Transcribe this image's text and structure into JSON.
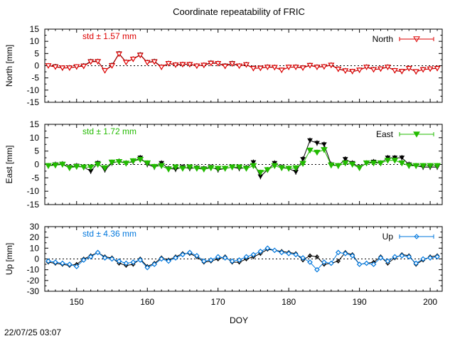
{
  "title": "Coordinate repeatability of FRIC",
  "xlabel": "DOY",
  "x_ticks": [
    150,
    160,
    170,
    180,
    190,
    200
  ],
  "timestamp": "22/07/25 03:07",
  "chart_data": {
    "type": "line",
    "title": "Coordinate repeatability of FRIC",
    "xlabel": "DOY",
    "xlim": [
      145.5,
      201.7
    ],
    "grid": false,
    "x": [
      146,
      147,
      148,
      149,
      150,
      151,
      152,
      153,
      154,
      155,
      156,
      157,
      158,
      159,
      160,
      161,
      162,
      163,
      164,
      165,
      166,
      167,
      168,
      169,
      170,
      171,
      172,
      173,
      174,
      175,
      176,
      177,
      178,
      179,
      180,
      181,
      182,
      183,
      184,
      185,
      186,
      187,
      188,
      189,
      190,
      191,
      192,
      193,
      194,
      195,
      196,
      197,
      198,
      199,
      200,
      201
    ],
    "panels": [
      {
        "name": "North",
        "ylabel": "North [mm]",
        "ylim": [
          -15,
          15
        ],
        "yticks": [
          -15,
          -10,
          -5,
          0,
          5,
          10,
          15
        ],
        "std_label": "std ± 1.57 mm",
        "color": "#dd0000",
        "legend_position": "top-right",
        "series": [
          {
            "name": "",
            "values": [
              0,
              -0.3,
              -1.0,
              -0.8,
              -0.5,
              0,
              1.8,
              1.8,
              -2.0,
              0.2,
              5.0,
              1.5,
              2.8,
              4.5,
              1.4,
              1.8,
              -0.5,
              1.0,
              0.4,
              0.6,
              0.6,
              0,
              0.3,
              1.2,
              1.0,
              0,
              1.0,
              0,
              0.5,
              -1.0,
              -1.0,
              -0.5,
              -0.6,
              -1.8,
              -0.6,
              -0.5,
              -0.8,
              0.2,
              -0.5,
              -0.3,
              0.3,
              -1.3,
              -2.0,
              -2.4,
              -1.8,
              -0.5,
              -1.5,
              -1.3,
              -0.5,
              -2.0,
              -2.4,
              -1.0,
              -2.5,
              -1.5,
              -1.3,
              -1.0
            ]
          },
          {
            "name": "North",
            "values": [
              0,
              -0.5,
              -0.9,
              -0.9,
              -0.4,
              -0.2,
              1.6,
              1.7,
              -2.0,
              0,
              4.8,
              1.4,
              2.7,
              4.3,
              1.3,
              1.6,
              -0.6,
              0.9,
              0.3,
              0.5,
              0.5,
              -0.1,
              0.2,
              1.0,
              0.9,
              -0.2,
              0.8,
              -0.1,
              0.4,
              -1.1,
              -1.0,
              -0.6,
              -0.7,
              -1.8,
              -0.6,
              -0.6,
              -0.9,
              0.1,
              -0.6,
              -0.4,
              0.2,
              -1.4,
              -2.1,
              -2.3,
              -1.8,
              -0.6,
              -1.6,
              -1.3,
              -0.6,
              -2.0,
              -2.3,
              -1.1,
              -2.4,
              -1.6,
              -1.3,
              -1.1
            ]
          }
        ]
      },
      {
        "name": "East",
        "ylabel": "East [mm]",
        "ylim": [
          -15,
          15
        ],
        "yticks": [
          -15,
          -10,
          -5,
          0,
          5,
          10,
          15
        ],
        "std_label": "std ± 1.72 mm",
        "color": "#22bb00",
        "legend_position": "top-right",
        "series": [
          {
            "name": "",
            "values": [
              -0.5,
              0,
              0.2,
              -1.0,
              -0.5,
              -1.0,
              -2.5,
              0.5,
              -2.0,
              0.5,
              1.2,
              0.5,
              1.0,
              2.5,
              0,
              -1.0,
              0.5,
              -1.5,
              -1.8,
              -1.0,
              -1.5,
              -1.2,
              -1.5,
              -1.0,
              -2.0,
              -1.5,
              -1.0,
              -1.5,
              -1.2,
              0.8,
              -4.5,
              -2.0,
              0.5,
              -1.0,
              -1.5,
              -2.8,
              2.0,
              9.0,
              8.0,
              7.5,
              0,
              -0.5,
              2.0,
              0.5,
              -1.0,
              0.5,
              1.0,
              0.5,
              2.5,
              2.5,
              2.5,
              0,
              -0.5,
              -1.0,
              -1.0,
              -1.0
            ]
          },
          {
            "name": "East",
            "values": [
              -0.5,
              -0.3,
              0,
              -1.3,
              -0.8,
              -1.0,
              -1.0,
              0,
              -1.3,
              0.8,
              1.0,
              0.4,
              1.3,
              1.8,
              0.5,
              -0.8,
              -0.5,
              -1.8,
              -1.0,
              -1.5,
              -1.0,
              -1.5,
              -1.8,
              -1.3,
              -1.5,
              -1.5,
              -1.0,
              -1.0,
              -1.5,
              -0.5,
              -3.0,
              -2.0,
              -0.5,
              -1.3,
              -1.5,
              -1.3,
              0.3,
              5.3,
              4.5,
              5.5,
              -0.3,
              -0.5,
              0.5,
              0,
              -1.3,
              0.5,
              0.5,
              0.5,
              1.5,
              1.5,
              0.5,
              -0.5,
              -0.5,
              -0.5,
              -0.5,
              -0.5
            ]
          }
        ]
      },
      {
        "name": "Up",
        "ylabel": "Up [mm]",
        "ylim": [
          -30,
          30
        ],
        "yticks": [
          -30,
          -20,
          -10,
          0,
          10,
          20,
          30
        ],
        "std_label": "std ± 4.36 mm",
        "color": "#0077dd",
        "legend_position": "top-right",
        "series": [
          {
            "name": "",
            "values": [
              -3,
              -4,
              -5,
              -6,
              -5,
              0,
              3,
              6,
              2,
              1,
              -4,
              -6,
              -5,
              0,
              -7,
              -4,
              1,
              -1,
              2,
              5,
              5,
              2,
              -3,
              -2,
              0,
              2,
              -3,
              -3,
              0,
              2,
              5,
              9,
              8,
              7,
              6,
              5,
              -1,
              3,
              2,
              -5,
              -4,
              -2,
              6,
              4,
              -5,
              -4,
              -3,
              2,
              -4,
              1,
              4,
              3,
              -5,
              -1,
              2,
              3
            ]
          },
          {
            "name": "Up",
            "values": [
              -2,
              -3,
              -4,
              -5,
              -7,
              -1,
              2,
              6,
              1,
              0,
              -2,
              -4,
              -3,
              -1,
              -8,
              -5,
              0,
              -2,
              1,
              4,
              6,
              3,
              -2,
              -1,
              2,
              1,
              -2,
              -1,
              2,
              4,
              7,
              10,
              8,
              6,
              5,
              4,
              1,
              -3,
              -10,
              -3,
              -4,
              6,
              5,
              3,
              -5,
              -4,
              -5,
              1,
              -2,
              2,
              3,
              2,
              -4,
              0,
              1,
              2
            ]
          }
        ]
      }
    ]
  }
}
